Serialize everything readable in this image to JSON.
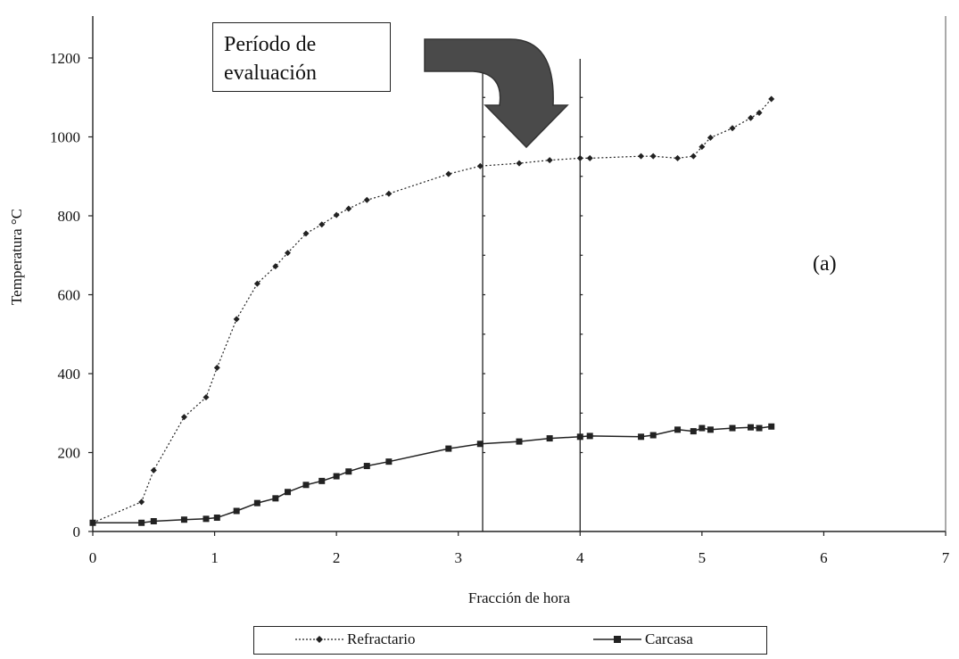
{
  "chart_data": {
    "type": "line",
    "title": "",
    "xlabel": "Fracción de hora",
    "ylabel": "Temperatura °C",
    "xlim": [
      0,
      7
    ],
    "ylim": [
      0,
      1200
    ],
    "x_ticks": [
      "0",
      "1",
      "2",
      "3",
      "4",
      "5",
      "6",
      "7"
    ],
    "y_ticks": [
      "0",
      "200",
      "400",
      "600",
      "800",
      "1000",
      "1200"
    ],
    "grid": false,
    "legend_position": "bottom",
    "series": [
      {
        "name": "Refractario",
        "line_style": "dotted",
        "marker": "diamond",
        "points": [
          [
            0.0,
            22
          ],
          [
            0.4,
            75
          ],
          [
            0.5,
            155
          ],
          [
            0.75,
            290
          ],
          [
            0.93,
            340
          ],
          [
            1.02,
            415
          ],
          [
            1.18,
            538
          ],
          [
            1.35,
            628
          ],
          [
            1.5,
            672
          ],
          [
            1.6,
            706
          ],
          [
            1.75,
            755
          ],
          [
            1.88,
            778
          ],
          [
            2.0,
            802
          ],
          [
            2.1,
            818
          ],
          [
            2.25,
            840
          ],
          [
            2.43,
            856
          ],
          [
            2.92,
            906
          ],
          [
            3.18,
            926
          ],
          [
            3.5,
            933
          ],
          [
            3.75,
            941
          ],
          [
            4.0,
            946
          ],
          [
            4.08,
            946
          ],
          [
            4.5,
            951
          ],
          [
            4.6,
            951
          ],
          [
            4.8,
            946
          ],
          [
            4.93,
            951
          ],
          [
            5.0,
            975
          ],
          [
            5.07,
            998
          ],
          [
            5.25,
            1022
          ],
          [
            5.4,
            1048
          ],
          [
            5.47,
            1061
          ],
          [
            5.57,
            1096
          ]
        ]
      },
      {
        "name": "Carcasa",
        "line_style": "solid",
        "marker": "square",
        "points": [
          [
            0.0,
            22
          ],
          [
            0.4,
            22
          ],
          [
            0.5,
            26
          ],
          [
            0.75,
            30
          ],
          [
            0.93,
            32
          ],
          [
            1.02,
            35
          ],
          [
            1.18,
            52
          ],
          [
            1.35,
            72
          ],
          [
            1.5,
            84
          ],
          [
            1.6,
            100
          ],
          [
            1.75,
            118
          ],
          [
            1.88,
            128
          ],
          [
            2.0,
            140
          ],
          [
            2.1,
            152
          ],
          [
            2.25,
            166
          ],
          [
            2.43,
            177
          ],
          [
            2.92,
            210
          ],
          [
            3.18,
            222
          ],
          [
            3.5,
            228
          ],
          [
            3.75,
            236
          ],
          [
            4.0,
            240
          ],
          [
            4.08,
            242
          ],
          [
            4.5,
            240
          ],
          [
            4.6,
            244
          ],
          [
            4.8,
            258
          ],
          [
            4.93,
            254
          ],
          [
            5.0,
            262
          ],
          [
            5.07,
            258
          ],
          [
            5.25,
            262
          ],
          [
            5.4,
            264
          ],
          [
            5.47,
            262
          ],
          [
            5.57,
            266
          ]
        ]
      }
    ],
    "annotation_text": [
      "Período de",
      "evaluación"
    ],
    "panel_label": "(a)",
    "vertical_markers": [
      3.2,
      4.0
    ],
    "colors": {
      "line": "#222222",
      "arrow": "#4a4a4a"
    }
  }
}
